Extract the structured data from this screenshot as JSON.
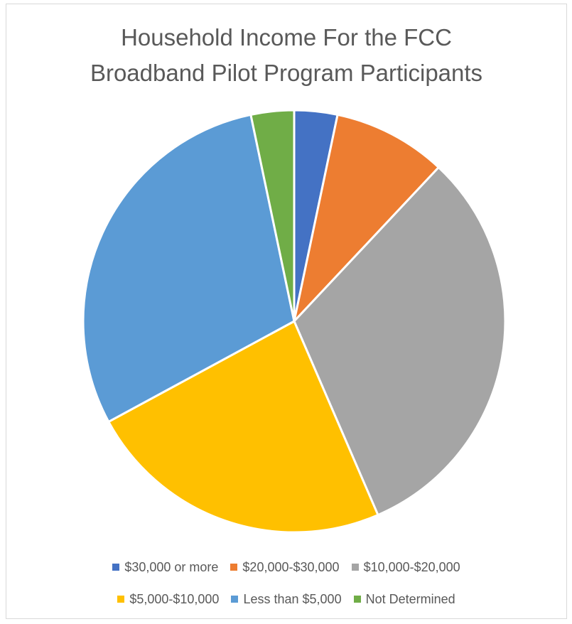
{
  "chart_data": {
    "type": "pie",
    "title_lines": [
      "Household Income For the FCC",
      "Broadband Pilot Program Participants"
    ],
    "start_angle_deg": 0,
    "direction": "clockwise",
    "legend_position": "bottom",
    "slices": [
      {
        "label": "$30,000 or more",
        "value": 3.3,
        "color": "#4472C4"
      },
      {
        "label": "$20,000-$30,000",
        "value": 8.7,
        "color": "#ED7D31"
      },
      {
        "label": "$10,000-$20,000",
        "value": 31.5,
        "color": "#A5A5A5"
      },
      {
        "label": "$5,000-$10,000",
        "value": 23.6,
        "color": "#FFC000"
      },
      {
        "label": "Less than $5,000",
        "value": 29.6,
        "color": "#5B9BD5"
      },
      {
        "label": "Not Determined",
        "value": 3.3,
        "color": "#70AD47"
      }
    ]
  }
}
